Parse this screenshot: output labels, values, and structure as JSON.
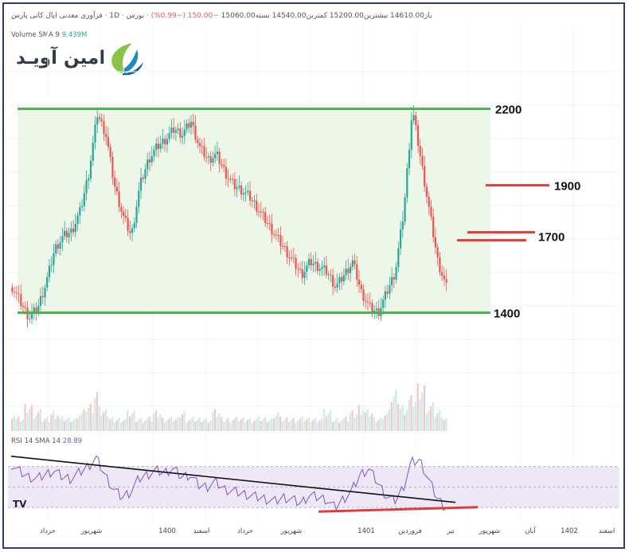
{
  "header": {
    "symbol": "فرآوری معدنی اپال کانی پارس",
    "interval": "1D",
    "exchange": "بورس",
    "open_label": "باز",
    "open": "14610.00",
    "high_label": "بیشترین",
    "high": "15200.00",
    "low_label": "کمترین",
    "low": "14540.00",
    "close_label": "بسته",
    "close": "15060.00",
    "change": "−150.00 (−0.99%)"
  },
  "volume_legend": {
    "label": "Volume SMA 9",
    "value": "9.439M"
  },
  "rsi_legend": {
    "label": "RSI 14 SMA 14",
    "value": "28.89"
  },
  "logo": {
    "text": "امین آویـد"
  },
  "watermark": "TV",
  "colors": {
    "up": "#26a69a",
    "down": "#ef5350",
    "range_line": "#4caf50",
    "range_fill": "#e8f5e3",
    "resistance": "#e03c3c",
    "rsi_line": "#7e57c2",
    "trendline": "#111111",
    "rsi_band": "#ede7f6"
  },
  "chart_data": [
    {
      "type": "candlestick",
      "title": "",
      "x_ticks": [
        "خرداد",
        "شهریور",
        "1400",
        "اسفند",
        "خرداد",
        "شهریور",
        "1401",
        "فروردین",
        "تیر",
        "شهریور",
        "آبان",
        "1402",
        "اسفند"
      ],
      "price_path": [
        1500,
        1440,
        1380,
        1420,
        1520,
        1650,
        1700,
        1720,
        1800,
        1950,
        2180,
        2100,
        1900,
        1780,
        1700,
        1900,
        2000,
        2050,
        2080,
        2120,
        2100,
        2150,
        2050,
        2000,
        2020,
        1950,
        1900,
        1880,
        1850,
        1800,
        1750,
        1700,
        1650,
        1600,
        1550,
        1600,
        1580,
        1560,
        1500,
        1550,
        1600,
        1480,
        1420,
        1400,
        1480,
        1560,
        1800,
        2200,
        2000,
        1800,
        1600,
        1500
      ],
      "levels": [
        {
          "label": "2200",
          "value": 2200,
          "kind": "range-top"
        },
        {
          "label": "1900",
          "value": 1900,
          "kind": "resistance"
        },
        {
          "label": "1700",
          "value": 1700,
          "kind": "resistance"
        },
        {
          "label": "1400",
          "value": 1400,
          "kind": "range-bottom"
        }
      ],
      "ylim": [
        1330,
        2330
      ]
    },
    {
      "type": "bar",
      "title": "",
      "series": [
        {
          "values": [
            3,
            2,
            4,
            3,
            2,
            3,
            2,
            2,
            3,
            4,
            6,
            3,
            2,
            2,
            3,
            2,
            2,
            3,
            2,
            2,
            3,
            2,
            2,
            2,
            3,
            2,
            2,
            2,
            2,
            2,
            2,
            3,
            2,
            2,
            2,
            2,
            2,
            3,
            2,
            2,
            3,
            4,
            3,
            2,
            3,
            6,
            4,
            5,
            7,
            4,
            3,
            2
          ]
        }
      ]
    },
    {
      "type": "line",
      "title": "",
      "series": [
        {
          "values": [
            72,
            65,
            60,
            58,
            62,
            66,
            60,
            58,
            64,
            70,
            78,
            62,
            48,
            40,
            45,
            58,
            62,
            66,
            64,
            68,
            60,
            62,
            52,
            50,
            55,
            48,
            46,
            44,
            42,
            40,
            38,
            36,
            40,
            38,
            34,
            42,
            40,
            38,
            30,
            38,
            46,
            62,
            68,
            55,
            42,
            36,
            48,
            74,
            76,
            58,
            40,
            30
          ]
        }
      ],
      "ylim": [
        20,
        90
      ],
      "trendline": [
        [
          0,
          80
        ],
        [
          51,
          35
        ]
      ],
      "support_line": [
        [
          35,
          26
        ],
        [
          51,
          28
        ]
      ]
    }
  ]
}
